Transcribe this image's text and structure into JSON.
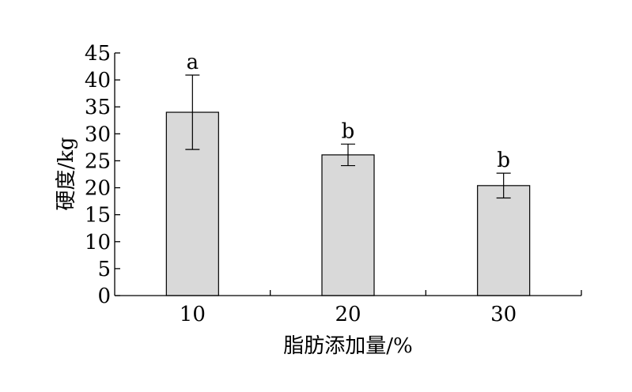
{
  "chart_data": {
    "type": "bar",
    "xlabel": "脂肪添加量/%",
    "ylabel": "硬度/kg",
    "categories": [
      "10",
      "20",
      "30"
    ],
    "values": [
      34,
      26.1,
      20.4
    ],
    "errors": [
      6.9,
      2.0,
      2.3
    ],
    "significance_labels": [
      "a",
      "b",
      "b"
    ],
    "ylim": [
      0,
      45
    ],
    "yticks": [
      "0",
      "5",
      "10",
      "15",
      "20",
      "25",
      "30",
      "35",
      "40",
      "45"
    ],
    "bar_color": "#d9d9d9",
    "grid": false
  }
}
